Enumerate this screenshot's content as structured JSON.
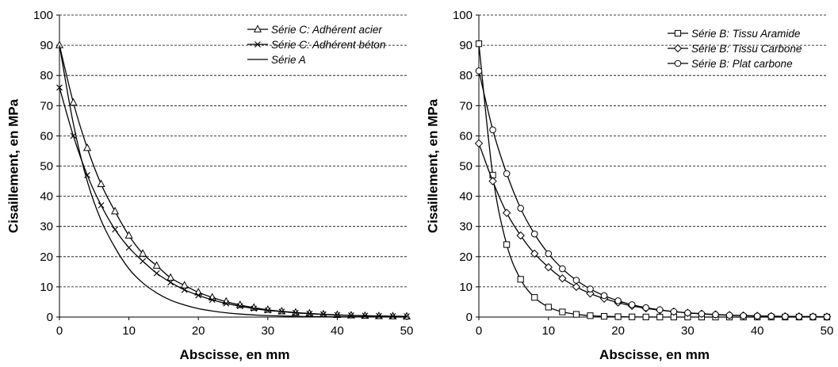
{
  "chart_data": [
    {
      "type": "line",
      "title": "",
      "xlabel": "Abscisse, en mm",
      "ylabel": "Cisaillement, en MPa",
      "xlim": [
        0,
        50
      ],
      "ylim": [
        0,
        100
      ],
      "xticks": [
        "0",
        "10",
        "20",
        "30",
        "40",
        "50"
      ],
      "yticks": [
        "0",
        "10",
        "20",
        "30",
        "40",
        "50",
        "60",
        "70",
        "80",
        "90",
        "100"
      ],
      "grid": "horizontal dashed",
      "legend_position": "top-right",
      "series": [
        {
          "name": "Série C: Adhérent acier",
          "marker": "triangle",
          "x": [
            0,
            2,
            4,
            6,
            8,
            10,
            12,
            14,
            16,
            18,
            20,
            22,
            24,
            26,
            28,
            30,
            32,
            34,
            36,
            38,
            40,
            42,
            44,
            46,
            48,
            50
          ],
          "y": [
            90,
            71,
            56,
            44,
            35,
            27,
            21,
            17,
            13,
            10.5,
            8.2,
            6.5,
            5.1,
            4,
            3.1,
            2.4,
            1.9,
            1.5,
            1.2,
            0.9,
            0.7,
            0.55,
            0.4,
            0.3,
            0.25,
            0.2
          ]
        },
        {
          "name": "Série C: Adhérent béton",
          "marker": "x",
          "x": [
            0,
            2,
            4,
            6,
            8,
            10,
            12,
            14,
            16,
            18,
            20,
            22,
            24,
            26,
            28,
            30,
            32,
            34,
            36,
            38,
            40,
            42,
            44,
            46,
            48,
            50
          ],
          "y": [
            76,
            60,
            47,
            37,
            29,
            23,
            18.5,
            14.5,
            11.5,
            9,
            7.2,
            5.7,
            4.5,
            3.6,
            2.8,
            2.2,
            1.8,
            1.4,
            1.1,
            0.9,
            0.7,
            0.55,
            0.45,
            0.35,
            0.3,
            0.25
          ]
        },
        {
          "name": "Série A",
          "marker": "none",
          "x": [
            0,
            2,
            4,
            6,
            8,
            10,
            12,
            14,
            16,
            18,
            20,
            22,
            24,
            26,
            28,
            30,
            35,
            40,
            45,
            50
          ],
          "y": [
            90,
            64,
            45,
            32,
            23,
            16,
            11.3,
            8,
            5.6,
            4,
            2.8,
            2,
            1.4,
            1,
            0.7,
            0.5,
            0.2,
            0.1,
            0.05,
            0
          ]
        }
      ]
    },
    {
      "type": "line",
      "title": "",
      "xlabel": "Abscisse, en mm",
      "ylabel": "Cisaillement, en MPa",
      "xlim": [
        0,
        50
      ],
      "ylim": [
        0,
        100
      ],
      "xticks": [
        "0",
        "10",
        "20",
        "30",
        "40",
        "50"
      ],
      "yticks": [
        "0",
        "10",
        "20",
        "30",
        "40",
        "50",
        "60",
        "70",
        "80",
        "90",
        "100"
      ],
      "grid": "horizontal dashed",
      "legend_position": "top-right",
      "series": [
        {
          "name": "Série B: Tissu Aramide",
          "marker": "square",
          "x": [
            0,
            2,
            4,
            6,
            8,
            10,
            12,
            14,
            16,
            18,
            20,
            22,
            24,
            26,
            28,
            30,
            32,
            34,
            36,
            38,
            40,
            42,
            44,
            46,
            48,
            50
          ],
          "y": [
            90.5,
            47,
            24,
            12.5,
            6.5,
            3.3,
            1.7,
            0.9,
            0.45,
            0.25,
            0.12,
            0.06,
            0.03,
            0,
            0,
            0,
            0,
            0,
            0,
            0,
            0,
            0,
            0,
            0,
            0,
            0
          ]
        },
        {
          "name": "Série B: Tissu Carbone",
          "marker": "diamond",
          "x": [
            0,
            2,
            4,
            6,
            8,
            10,
            12,
            14,
            16,
            18,
            20,
            22,
            24,
            26,
            28,
            30,
            32,
            34,
            36,
            38,
            40,
            42,
            44,
            46,
            48,
            50
          ],
          "y": [
            57.5,
            45,
            34.5,
            27,
            21,
            16.5,
            12.8,
            10,
            7.8,
            6.1,
            4.8,
            3.7,
            2.9,
            2.3,
            1.8,
            1.4,
            1.1,
            0.85,
            0.65,
            0.5,
            0.4,
            0.3,
            0.25,
            0.2,
            0.15,
            0.12
          ]
        },
        {
          "name": "Série B: Plat carbone",
          "marker": "circle",
          "x": [
            0,
            2,
            4,
            6,
            8,
            10,
            12,
            14,
            16,
            18,
            20,
            22,
            24,
            26,
            28,
            30,
            32,
            34,
            36,
            38,
            40,
            42,
            44,
            46,
            48,
            50
          ],
          "y": [
            81.5,
            62,
            47.5,
            36,
            27.5,
            21,
            16,
            12.2,
            9.3,
            7.1,
            5.4,
            4.1,
            3.1,
            2.4,
            1.8,
            1.4,
            1.05,
            0.8,
            0.6,
            0.45,
            0.35,
            0.27,
            0.2,
            0.15,
            0.12,
            0.1
          ]
        }
      ]
    }
  ]
}
